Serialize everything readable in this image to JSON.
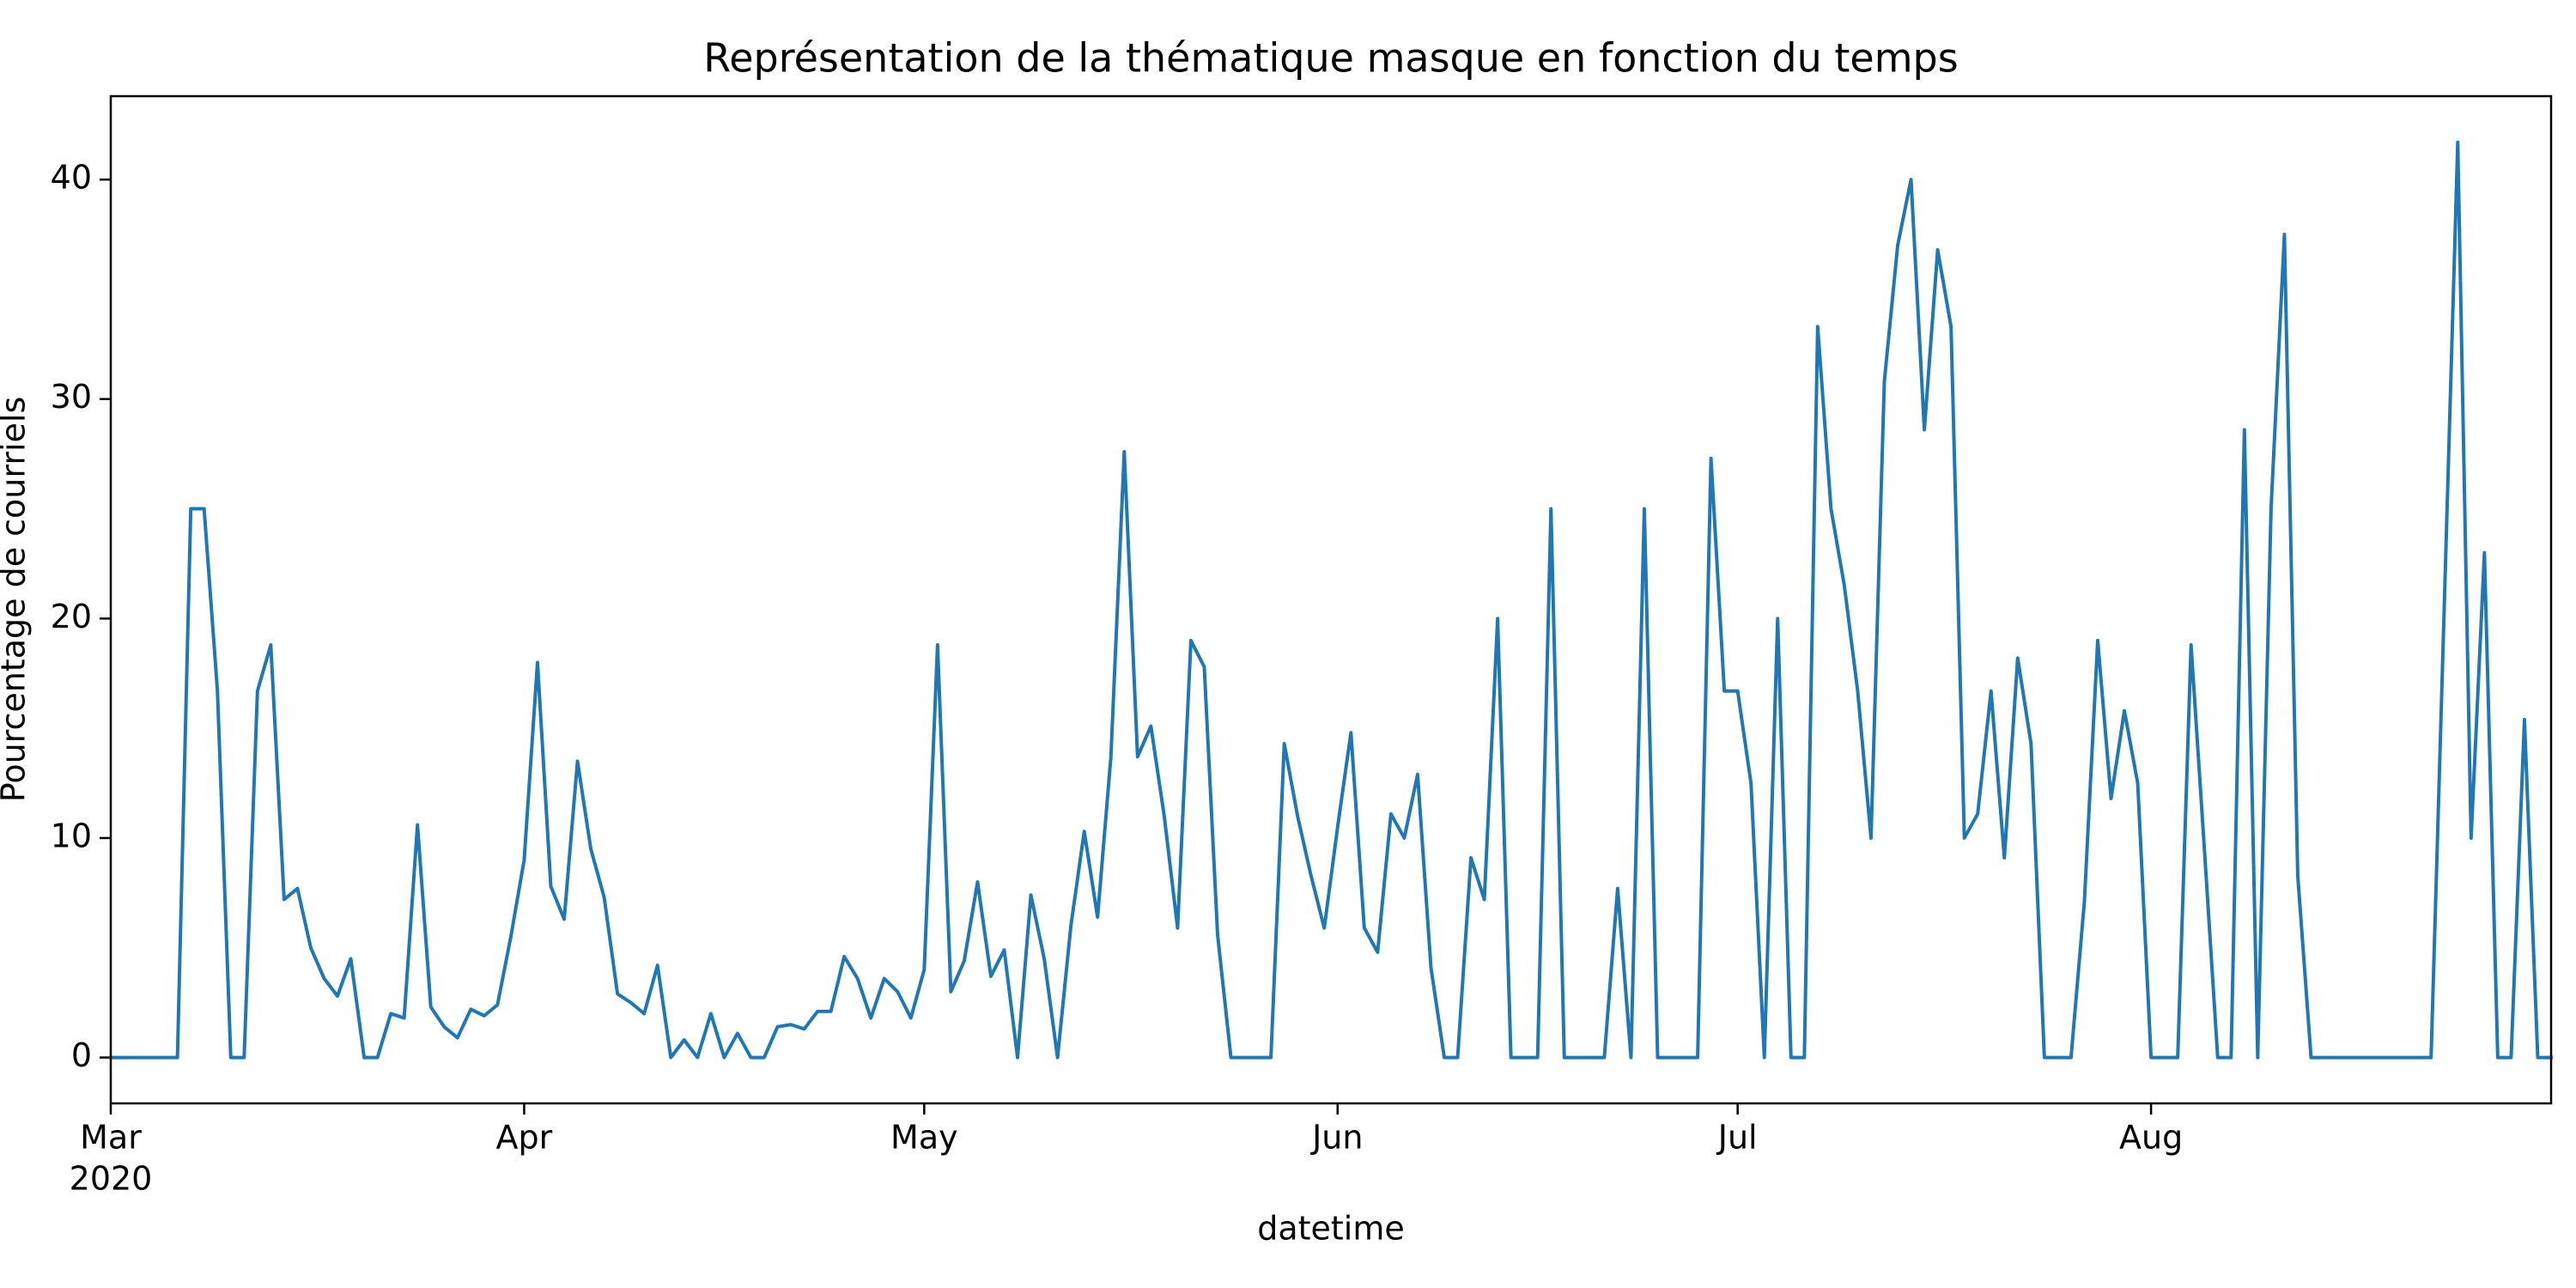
{
  "chart_data": {
    "type": "line",
    "title": "Représentation de la thématique masque en fonction du temps",
    "xlabel": "datetime",
    "ylabel": "Pourcentage de courriels",
    "color": "#1f77b4",
    "x": [
      "2020-03-01",
      "2020-03-02",
      "2020-03-03",
      "2020-03-04",
      "2020-03-05",
      "2020-03-06",
      "2020-03-07",
      "2020-03-08",
      "2020-03-09",
      "2020-03-10",
      "2020-03-11",
      "2020-03-12",
      "2020-03-13",
      "2020-03-14",
      "2020-03-15",
      "2020-03-16",
      "2020-03-17",
      "2020-03-18",
      "2020-03-19",
      "2020-03-20",
      "2020-03-21",
      "2020-03-22",
      "2020-03-23",
      "2020-03-24",
      "2020-03-25",
      "2020-03-26",
      "2020-03-27",
      "2020-03-28",
      "2020-03-29",
      "2020-03-30",
      "2020-03-31",
      "2020-04-01",
      "2020-04-02",
      "2020-04-03",
      "2020-04-04",
      "2020-04-05",
      "2020-04-06",
      "2020-04-07",
      "2020-04-08",
      "2020-04-09",
      "2020-04-10",
      "2020-04-11",
      "2020-04-12",
      "2020-04-13",
      "2020-04-14",
      "2020-04-15",
      "2020-04-16",
      "2020-04-17",
      "2020-04-18",
      "2020-04-19",
      "2020-04-20",
      "2020-04-21",
      "2020-04-22",
      "2020-04-23",
      "2020-04-24",
      "2020-04-25",
      "2020-04-26",
      "2020-04-27",
      "2020-04-28",
      "2020-04-29",
      "2020-04-30",
      "2020-05-01",
      "2020-05-02",
      "2020-05-03",
      "2020-05-04",
      "2020-05-05",
      "2020-05-06",
      "2020-05-07",
      "2020-05-08",
      "2020-05-09",
      "2020-05-10",
      "2020-05-11",
      "2020-05-12",
      "2020-05-13",
      "2020-05-14",
      "2020-05-15",
      "2020-05-16",
      "2020-05-17",
      "2020-05-18",
      "2020-05-19",
      "2020-05-20",
      "2020-05-21",
      "2020-05-22",
      "2020-05-23",
      "2020-05-24",
      "2020-05-25",
      "2020-05-26",
      "2020-05-27",
      "2020-05-28",
      "2020-05-29",
      "2020-05-30",
      "2020-05-31",
      "2020-06-01",
      "2020-06-02",
      "2020-06-03",
      "2020-06-04",
      "2020-06-05",
      "2020-06-06",
      "2020-06-07",
      "2020-06-08",
      "2020-06-09",
      "2020-06-10",
      "2020-06-11",
      "2020-06-12",
      "2020-06-13",
      "2020-06-14",
      "2020-06-15",
      "2020-06-16",
      "2020-06-17",
      "2020-06-18",
      "2020-06-19",
      "2020-06-20",
      "2020-06-21",
      "2020-06-22",
      "2020-06-23",
      "2020-06-24",
      "2020-06-25",
      "2020-06-26",
      "2020-06-27",
      "2020-06-28",
      "2020-06-29",
      "2020-06-30",
      "2020-07-01",
      "2020-07-02",
      "2020-07-03",
      "2020-07-04",
      "2020-07-05",
      "2020-07-06",
      "2020-07-07",
      "2020-07-08",
      "2020-07-09",
      "2020-07-10",
      "2020-07-11",
      "2020-07-12",
      "2020-07-13",
      "2020-07-14",
      "2020-07-15",
      "2020-07-16",
      "2020-07-17",
      "2020-07-18",
      "2020-07-19",
      "2020-07-20",
      "2020-07-21",
      "2020-07-22",
      "2020-07-23",
      "2020-07-24",
      "2020-07-25",
      "2020-07-26",
      "2020-07-27",
      "2020-07-28",
      "2020-07-29",
      "2020-07-30",
      "2020-07-31",
      "2020-08-01",
      "2020-08-02",
      "2020-08-03",
      "2020-08-04",
      "2020-08-05",
      "2020-08-06",
      "2020-08-07",
      "2020-08-08",
      "2020-08-09",
      "2020-08-10",
      "2020-08-11",
      "2020-08-12",
      "2020-08-13",
      "2020-08-14",
      "2020-08-15",
      "2020-08-16",
      "2020-08-17",
      "2020-08-18",
      "2020-08-19",
      "2020-08-20",
      "2020-08-21",
      "2020-08-22",
      "2020-08-23",
      "2020-08-24",
      "2020-08-25",
      "2020-08-26",
      "2020-08-27",
      "2020-08-28",
      "2020-08-29",
      "2020-08-30",
      "2020-08-31"
    ],
    "values": [
      0,
      0,
      0,
      0,
      0,
      0,
      25,
      25,
      16.7,
      0,
      0,
      16.7,
      18.8,
      7.2,
      7.7,
      5,
      3.6,
      2.8,
      4.5,
      0,
      0,
      2,
      1.8,
      10.6,
      2.3,
      1.4,
      0.9,
      2.2,
      1.9,
      2.4,
      5.5,
      9,
      18,
      7.8,
      6.3,
      13.5,
      9.5,
      7.3,
      2.9,
      2.5,
      2,
      4.2,
      0,
      0.8,
      0,
      2,
      0,
      1.1,
      0,
      0,
      1.4,
      1.5,
      1.3,
      2.1,
      2.1,
      4.6,
      3.6,
      1.8,
      3.6,
      3,
      1.8,
      4,
      18.8,
      3,
      4.4,
      8,
      3.7,
      4.9,
      0,
      7.4,
      4.5,
      0,
      6,
      10.3,
      6.4,
      13.7,
      27.6,
      13.7,
      15.1,
      11,
      5.9,
      19,
      17.8,
      5.6,
      0,
      0,
      0,
      0,
      14.3,
      11,
      8.3,
      5.9,
      10.5,
      14.8,
      5.9,
      4.8,
      11.1,
      10,
      12.9,
      4.1,
      0,
      0,
      9.1,
      7.2,
      20,
      0,
      0,
      0,
      25,
      0,
      0,
      0,
      0,
      7.7,
      0,
      25,
      0,
      0,
      0,
      0,
      27.3,
      16.7,
      16.7,
      12.5,
      0,
      20,
      0,
      0,
      33.3,
      25,
      21.5,
      16.7,
      10,
      30.8,
      37,
      40,
      28.6,
      36.8,
      33.3,
      10,
      11.1,
      16.7,
      9.1,
      18.2,
      14.3,
      0,
      0,
      0,
      7.1,
      19,
      11.8,
      15.8,
      12.5,
      0,
      0,
      0,
      18.8,
      9.5,
      0,
      0,
      28.6,
      0,
      25,
      37.5,
      8.3,
      0,
      0,
      0,
      0,
      0,
      0,
      0,
      0,
      0,
      0,
      20.8,
      41.7,
      10,
      23,
      0,
      0,
      15.4,
      0,
      0
    ],
    "xlim": [
      "2020-03-01",
      "2020-08-31"
    ],
    "xticks": [
      {
        "value": "2020-03-01",
        "label": "Mar",
        "label2": "2020"
      },
      {
        "value": "2020-04-01",
        "label": "Apr"
      },
      {
        "value": "2020-05-01",
        "label": "May"
      },
      {
        "value": "2020-06-01",
        "label": "Jun"
      },
      {
        "value": "2020-07-01",
        "label": "Jul"
      },
      {
        "value": "2020-08-01",
        "label": "Aug"
      }
    ],
    "ylim": [
      -2.09,
      43.8
    ],
    "yticks": [
      0,
      10,
      20,
      30,
      40
    ],
    "grid": false
  }
}
